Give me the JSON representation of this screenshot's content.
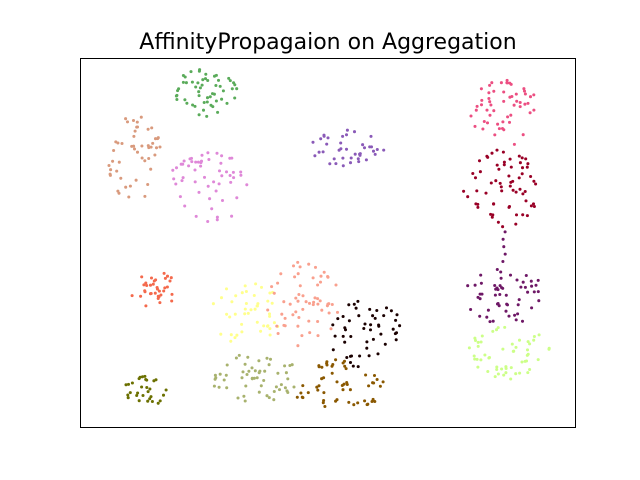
{
  "chart_data": {
    "type": "scatter",
    "title": "AffinityPropagaion on Aggregation",
    "xlabel": "",
    "ylabel": "",
    "axes_visible": false,
    "grid": false,
    "legend": "none",
    "xlim": [
      0,
      100
    ],
    "ylim": [
      0,
      100
    ],
    "marker_radius_data": 0.55,
    "series": [
      {
        "color": "#5aab5a",
        "n": 55,
        "center": [
          25.5,
          90.5
        ],
        "spread": [
          7.5,
          6.5
        ],
        "shape": "ellipse",
        "seed": 11
      },
      {
        "color": "#d99a7d",
        "n": 50,
        "center": [
          11.0,
          73.0
        ],
        "spread": [
          5.5,
          12.0
        ],
        "shape": "ellipse",
        "seed": 23
      },
      {
        "color": "#df88d8",
        "n": 55,
        "center": [
          26.0,
          65.0
        ],
        "spread": [
          8.5,
          9.5
        ],
        "shape": "ellipse",
        "seed": 37
      },
      {
        "color": "#8a5ab8",
        "n": 40,
        "center": [
          54.0,
          75.5
        ],
        "spread": [
          7.5,
          5.0
        ],
        "shape": "ellipse",
        "seed": 41
      },
      {
        "color": "#ec4f82",
        "n": 55,
        "center": [
          85.5,
          85.5
        ],
        "spread": [
          7.0,
          9.5
        ],
        "shape": "ellipse",
        "seed": 53
      },
      {
        "color": "#990026",
        "n": 65,
        "center": [
          84.5,
          64.5
        ],
        "spread": [
          8.5,
          11.0
        ],
        "shape": "ellipse",
        "seed": 67
      },
      {
        "color": "#6e1866",
        "n": 5,
        "center": [
          85.5,
          49.0
        ],
        "spread": [
          0.5,
          4.0
        ],
        "shape": "line",
        "seed": 71
      },
      {
        "color": "#6e1866",
        "n": 55,
        "center": [
          85.5,
          35.5
        ],
        "spread": [
          8.5,
          7.5
        ],
        "shape": "ellipse",
        "seed": 79
      },
      {
        "color": "#ccff88",
        "n": 55,
        "center": [
          86.5,
          20.5
        ],
        "spread": [
          8.5,
          7.5
        ],
        "shape": "ellipse",
        "seed": 83
      },
      {
        "color": "#f4694c",
        "n": 35,
        "center": [
          15.0,
          37.5
        ],
        "spread": [
          5.5,
          5.0
        ],
        "shape": "ellipse",
        "seed": 97
      },
      {
        "color": "#ffff8c",
        "n": 45,
        "center": [
          33.5,
          31.0
        ],
        "spread": [
          7.5,
          8.5
        ],
        "shape": "ellipse",
        "seed": 101
      },
      {
        "color": "#f9a08e",
        "n": 60,
        "center": [
          45.0,
          33.5
        ],
        "spread": [
          7.5,
          11.5
        ],
        "shape": "ellipse",
        "seed": 113
      },
      {
        "color": "#1a0000",
        "n": 50,
        "center": [
          57.5,
          25.5
        ],
        "spread": [
          7.5,
          10.0
        ],
        "shape": "ellipse",
        "seed": 127
      },
      {
        "color": "#a8b26e",
        "n": 55,
        "center": [
          35.5,
          13.5
        ],
        "spread": [
          9.0,
          7.0
        ],
        "shape": "ellipse",
        "seed": 131
      },
      {
        "color": "#8a5800",
        "n": 55,
        "center": [
          52.0,
          11.5
        ],
        "spread": [
          9.5,
          7.0
        ],
        "shape": "ellipse",
        "seed": 139
      },
      {
        "color": "#6b7000",
        "n": 30,
        "center": [
          13.0,
          9.5
        ],
        "spread": [
          4.5,
          4.5
        ],
        "shape": "ellipse",
        "seed": 149
      }
    ]
  }
}
